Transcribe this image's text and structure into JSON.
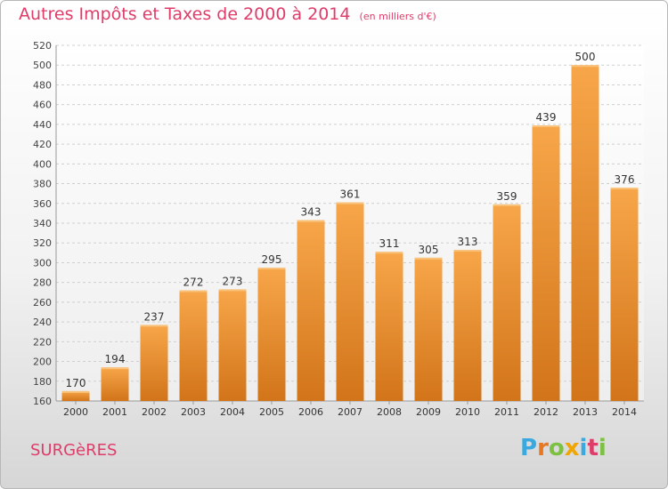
{
  "title": "Autres Impôts et Taxes de 2000 à 2014",
  "subtitle": "(en milliers d'€)",
  "commune": "SURGèRES",
  "logo": {
    "letters": [
      "P",
      "r",
      "o",
      "x",
      "i",
      "t",
      "i"
    ],
    "colors": [
      "#3aa9e0",
      "#e87722",
      "#7cc142",
      "#f0a500",
      "#3aa9e0",
      "#e03c6a",
      "#7cc142"
    ]
  },
  "colors": {
    "bar": "#f5a041",
    "bar_dark": "#d9781c",
    "title": "#e03c6a"
  },
  "chart_data": {
    "type": "bar",
    "title": "Autres Impôts et Taxes de 2000 à 2014",
    "subtitle": "(en milliers d'€)",
    "xlabel": "",
    "ylabel": "",
    "categories": [
      "2000",
      "2001",
      "2002",
      "2003",
      "2004",
      "2005",
      "2006",
      "2007",
      "2008",
      "2009",
      "2010",
      "2011",
      "2012",
      "2013",
      "2014"
    ],
    "values": [
      170,
      194,
      237,
      272,
      273,
      295,
      343,
      361,
      311,
      305,
      313,
      359,
      439,
      500,
      376
    ],
    "ylim": [
      160,
      520
    ],
    "yticks": [
      160,
      180,
      200,
      220,
      240,
      260,
      280,
      300,
      320,
      340,
      360,
      380,
      400,
      420,
      440,
      460,
      480,
      500,
      520
    ],
    "grid": true,
    "legend": "none"
  }
}
